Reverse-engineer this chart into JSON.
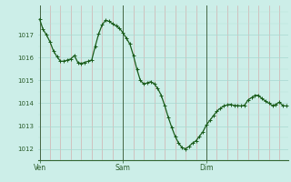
{
  "background_color": "#cceee8",
  "plot_bg_color": "#cceee8",
  "line_color": "#1a5c1a",
  "marker_color": "#1a5c1a",
  "tick_label_color": "#2a5c2a",
  "ylim": [
    1011.5,
    1018.3
  ],
  "yticks": [
    1012,
    1013,
    1014,
    1015,
    1016,
    1017
  ],
  "xtick_labels": [
    "Ven",
    "Sam",
    "Dim"
  ],
  "xtick_positions": [
    0,
    24,
    48
  ],
  "vline_positions": [
    0,
    24,
    48
  ],
  "x": [
    0,
    1,
    2,
    3,
    4,
    5,
    6,
    7,
    8,
    9,
    10,
    11,
    12,
    13,
    14,
    15,
    16,
    17,
    18,
    19,
    20,
    21,
    22,
    23,
    24,
    25,
    26,
    27,
    28,
    29,
    30,
    31,
    32,
    33,
    34,
    35,
    36,
    37,
    38,
    39,
    40,
    41,
    42,
    43,
    44,
    45,
    46,
    47,
    48,
    49,
    50,
    51,
    52,
    53,
    54,
    55,
    56,
    57,
    58,
    59,
    60,
    61,
    62,
    63,
    64,
    65,
    66,
    67,
    68,
    69,
    70,
    71
  ],
  "y": [
    1017.7,
    1017.25,
    1017.0,
    1016.7,
    1016.3,
    1016.05,
    1015.85,
    1015.85,
    1015.9,
    1015.95,
    1016.1,
    1015.8,
    1015.75,
    1015.8,
    1015.85,
    1015.9,
    1016.5,
    1017.05,
    1017.45,
    1017.65,
    1017.6,
    1017.5,
    1017.4,
    1017.3,
    1017.1,
    1016.85,
    1016.6,
    1016.1,
    1015.5,
    1015.0,
    1014.85,
    1014.9,
    1014.95,
    1014.85,
    1014.65,
    1014.35,
    1013.9,
    1013.4,
    1012.95,
    1012.55,
    1012.25,
    1012.05,
    1012.0,
    1012.1,
    1012.25,
    1012.35,
    1012.55,
    1012.75,
    1013.05,
    1013.25,
    1013.45,
    1013.65,
    1013.78,
    1013.88,
    1013.93,
    1013.95,
    1013.9,
    1013.9,
    1013.88,
    1013.92,
    1014.15,
    1014.25,
    1014.35,
    1014.35,
    1014.2,
    1014.1,
    1014.0,
    1013.9,
    1013.95,
    1014.05,
    1013.9,
    1013.88
  ]
}
